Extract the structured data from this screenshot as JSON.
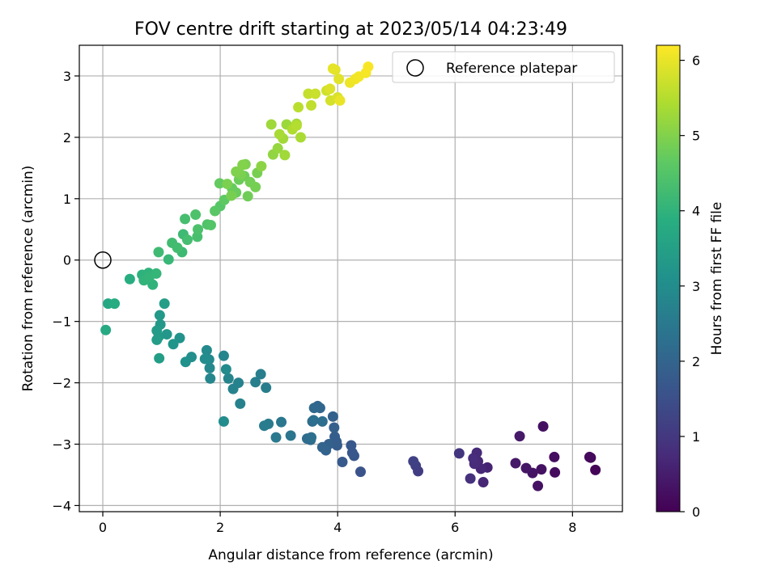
{
  "chart_data": {
    "type": "scatter",
    "title": "FOV centre drift starting at 2023/05/14 04:23:49",
    "xlabel": "Angular distance from reference (arcmin)",
    "ylabel": "Rotation from reference (arcmin)",
    "xlim": [
      -0.4,
      8.85
    ],
    "ylim": [
      -4.1,
      3.5
    ],
    "xticks": [
      0,
      2,
      4,
      6,
      8
    ],
    "yticks": [
      -4,
      -3,
      -2,
      -1,
      0,
      1,
      2,
      3
    ],
    "xtick_labels": [
      "0",
      "2",
      "4",
      "6",
      "8"
    ],
    "ytick_labels": [
      "−4",
      "−3",
      "−2",
      "−1",
      "0",
      "1",
      "2",
      "3"
    ],
    "grid": true,
    "legend": {
      "placement": "top-right",
      "entries": [
        "Reference platepar"
      ]
    },
    "colorbar": {
      "label": "Hours from first FF file",
      "colormap": "viridis",
      "range": [
        0,
        6.2
      ],
      "ticks": [
        0,
        1,
        2,
        3,
        4,
        5,
        6
      ],
      "tick_labels": [
        "0",
        "1",
        "2",
        "3",
        "4",
        "5",
        "6"
      ]
    },
    "reference_point": {
      "x": 0,
      "y": 0,
      "label": "Reference platepar"
    },
    "series": [
      {
        "x": [
          8.39,
          8.31,
          8.29,
          7.7,
          7.69,
          7.5,
          7.47,
          7.41,
          7.32,
          7.21,
          7.03,
          7.1,
          6.55,
          6.48,
          6.44,
          6.39,
          6.37,
          6.33,
          6.31,
          6.26,
          6.07,
          5.37,
          5.33,
          5.29,
          4.39,
          4.28,
          4.25,
          4.23,
          4.08,
          3.99,
          3.98,
          3.95,
          3.94,
          3.92,
          3.85,
          3.8,
          3.74,
          3.7,
          3.66,
          3.6,
          3.57,
          3.54,
          3.48,
          3.74,
          3.59,
          3.55,
          3.2,
          3.04,
          2.95,
          2.82,
          2.75,
          2.78,
          2.69,
          2.6,
          2.34,
          2.31,
          2.22,
          2.14,
          2.06,
          1.83,
          1.82,
          1.81,
          1.77,
          2.1,
          2.06,
          1.74,
          1.51,
          1.41,
          1.31,
          1.2,
          1.09,
          0.98,
          0.97,
          0.95,
          0.92,
          0.92,
          0.96,
          1.05,
          0.09,
          0.05,
          0.2,
          0.46,
          0.67,
          0.78,
          0.85,
          0.7,
          0.79,
          0.91,
          1.12,
          1.35,
          1.37,
          0.95,
          1.18,
          1.27,
          1.44,
          1.61,
          1.62,
          1.78,
          1.58,
          1.4,
          1.84,
          2.0,
          1.91,
          2.07,
          1.99,
          2.2,
          2.27,
          2.32,
          2.41,
          2.47,
          2.51,
          2.6,
          2.63,
          2.35,
          2.43,
          2.27,
          2.19,
          2.12,
          2.38,
          2.7,
          2.9,
          2.98,
          3.13,
          3.1,
          3.3,
          3.37,
          3.23,
          3.3,
          3.33,
          3.55,
          3.5,
          3.62,
          3.81,
          3.88,
          4.0,
          3.87,
          4.02,
          3.96,
          3.92,
          4.04,
          4.21,
          4.3,
          4.36,
          4.48,
          4.52,
          2.87,
          3.07,
          3.01
        ],
        "y": [
          -3.42,
          -3.22,
          -3.21,
          -3.46,
          -3.21,
          -2.71,
          -3.41,
          -3.68,
          -3.47,
          -3.39,
          -3.31,
          -2.87,
          -3.38,
          -3.62,
          -3.4,
          -3.28,
          -3.14,
          -3.32,
          -3.23,
          -3.56,
          -3.15,
          -3.44,
          -3.35,
          -3.28,
          -3.45,
          -3.19,
          -3.14,
          -3.02,
          -3.29,
          -3.02,
          -2.96,
          -2.88,
          -2.73,
          -2.55,
          -3.0,
          -3.1,
          -3.05,
          -2.41,
          -2.38,
          -2.41,
          -2.63,
          -2.93,
          -2.91,
          -2.63,
          -2.61,
          -2.89,
          -2.86,
          -2.64,
          -2.89,
          -2.67,
          -2.7,
          -2.08,
          -1.86,
          -1.99,
          -2.34,
          -2.0,
          -2.1,
          -1.93,
          -1.56,
          -1.93,
          -1.76,
          -1.62,
          -1.47,
          -1.78,
          -2.63,
          -1.61,
          -1.58,
          -1.66,
          -1.27,
          -1.37,
          -1.21,
          -1.05,
          -0.9,
          -1.25,
          -1.15,
          -1.3,
          -1.6,
          -0.71,
          -0.71,
          -1.14,
          -0.71,
          -0.31,
          -0.24,
          -0.21,
          -0.4,
          -0.33,
          -0.28,
          -0.22,
          0.01,
          0.13,
          0.42,
          0.13,
          0.28,
          0.2,
          0.33,
          0.38,
          0.5,
          0.58,
          0.74,
          0.67,
          0.57,
          0.88,
          0.8,
          0.98,
          1.25,
          1.17,
          1.1,
          1.31,
          1.37,
          1.04,
          1.27,
          1.19,
          1.42,
          1.39,
          1.56,
          1.44,
          1.05,
          1.24,
          1.55,
          1.53,
          1.72,
          1.82,
          2.21,
          1.71,
          2.22,
          2.0,
          2.13,
          2.19,
          2.49,
          2.52,
          2.71,
          2.71,
          2.76,
          2.6,
          2.65,
          2.79,
          2.95,
          3.1,
          3.12,
          2.6,
          2.89,
          2.95,
          2.99,
          3.05,
          3.15,
          2.21,
          1.98,
          2.05
        ],
        "hours": [
          0.05,
          0.12,
          0.15,
          0.2,
          0.22,
          0.25,
          0.28,
          0.3,
          0.32,
          0.35,
          0.4,
          0.42,
          0.6,
          0.65,
          0.68,
          0.7,
          0.72,
          0.75,
          0.78,
          0.85,
          0.95,
          1.1,
          1.15,
          1.2,
          1.6,
          1.65,
          1.68,
          1.7,
          1.75,
          1.8,
          1.82,
          1.85,
          1.88,
          1.9,
          1.92,
          1.95,
          1.98,
          2.0,
          2.05,
          2.1,
          2.15,
          2.18,
          2.2,
          2.22,
          2.25,
          2.28,
          2.4,
          2.45,
          2.5,
          2.55,
          2.58,
          2.6,
          2.62,
          2.65,
          2.7,
          2.72,
          2.75,
          2.78,
          2.8,
          2.85,
          2.88,
          2.9,
          2.92,
          2.95,
          2.98,
          3.0,
          3.05,
          3.1,
          3.15,
          3.2,
          3.25,
          3.3,
          3.32,
          3.35,
          3.38,
          3.4,
          3.42,
          3.45,
          3.7,
          3.75,
          3.8,
          3.85,
          3.95,
          3.98,
          4.0,
          4.02,
          4.05,
          4.08,
          4.12,
          4.18,
          4.2,
          4.22,
          4.25,
          4.28,
          4.3,
          4.35,
          4.4,
          4.45,
          4.42,
          4.32,
          4.5,
          4.55,
          4.58,
          4.65,
          4.7,
          4.72,
          4.75,
          4.78,
          4.8,
          4.82,
          4.85,
          4.88,
          4.9,
          4.92,
          4.95,
          4.98,
          4.9,
          4.93,
          5.0,
          5.1,
          5.15,
          5.2,
          5.25,
          5.3,
          5.35,
          5.4,
          5.45,
          5.48,
          5.55,
          5.6,
          5.65,
          5.7,
          5.75,
          5.8,
          5.85,
          5.88,
          5.92,
          5.95,
          5.98,
          6.02,
          6.05,
          6.08,
          6.1,
          6.12,
          6.15,
          5.28,
          5.32,
          5.38
        ]
      }
    ]
  }
}
